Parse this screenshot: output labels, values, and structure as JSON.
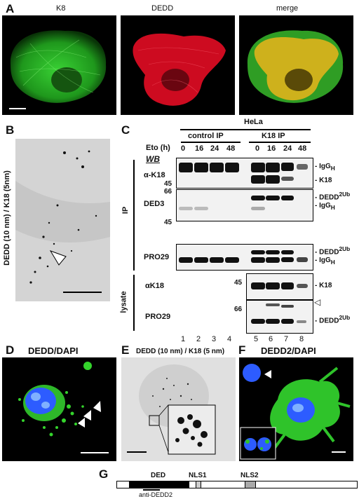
{
  "panels": {
    "A": "A",
    "B": "B",
    "C": "C",
    "D": "D",
    "E": "E",
    "F": "F",
    "G": "G"
  },
  "panelA": {
    "titles": [
      "K8",
      "DEDD",
      "merge"
    ]
  },
  "panelB": {
    "ylabel": "DEDD (10 nm) / K18 (5nm)"
  },
  "panelC": {
    "cell_line": "HeLa",
    "groups": [
      "control IP",
      "K18 IP"
    ],
    "eto_label": "Eto (h)",
    "timepoints": [
      "0",
      "16",
      "24",
      "48",
      "0",
      "16",
      "24",
      "48"
    ],
    "wb_label": "WB",
    "section_ip": "IP",
    "section_lysate": "lysate",
    "rows": [
      {
        "antibody": "α-K18",
        "mw": [
          "45"
        ],
        "right": [
          "IgG",
          "K18"
        ],
        "right_sub": [
          "H",
          ""
        ]
      },
      {
        "antibody": "DED3",
        "mw": [
          "66",
          "45"
        ],
        "right": [
          "DEDD",
          "IgG"
        ],
        "right_sub": [
          "2Ub",
          "H"
        ]
      },
      {
        "antibody": "PRO29",
        "mw": [],
        "right": [
          "DEDD",
          "IgG"
        ],
        "right_sub": [
          "2Ub",
          "H"
        ]
      },
      {
        "antibody": "αK18",
        "mw": [
          "45"
        ],
        "right": [
          "K18"
        ],
        "right_sub": [
          ""
        ]
      },
      {
        "antibody": "PRO29",
        "mw": [
          "66"
        ],
        "right": [
          "DEDD"
        ],
        "right_sub": [
          "2Ub"
        ]
      }
    ],
    "lanes": [
      "1",
      "2",
      "3",
      "4",
      "5",
      "6",
      "7",
      "8"
    ]
  },
  "panelD": {
    "title": "DEDD/DAPI"
  },
  "panelE": {
    "title": "DEDD (10 nm) / K18 (5 nm)"
  },
  "panelF": {
    "title": "DEDD2/DAPI"
  },
  "panelG": {
    "domains": [
      "DED",
      "NLS1",
      "NLS2"
    ],
    "antibody": "anti-DEDD2"
  },
  "colors": {
    "k8_green": "#2fd12a",
    "dedd_red": "#e8102a",
    "merge_yellow": "#d8b21a",
    "dapi_blue": "#2d5cff"
  }
}
